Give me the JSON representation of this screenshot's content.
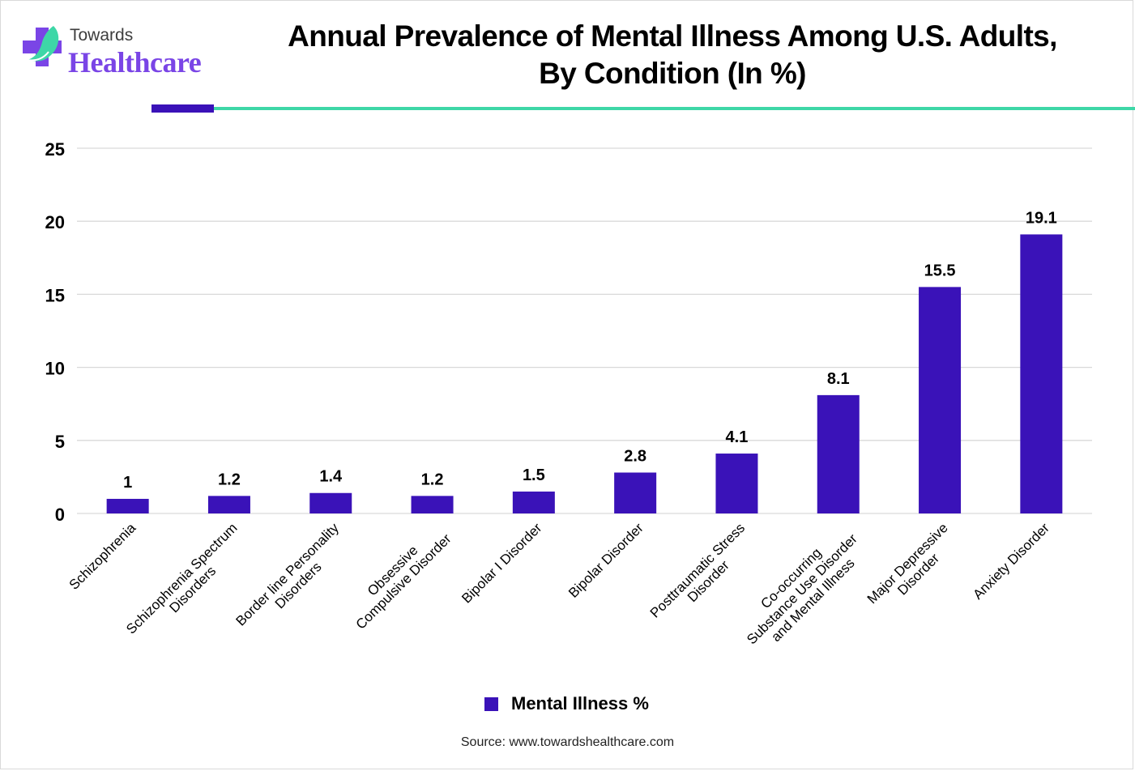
{
  "brand": {
    "top": "Towards",
    "bottom": "Healthcare",
    "colors": {
      "purple": "#7a45e6",
      "teal": "#3ed7a7",
      "dark_text": "#3d3d3d"
    }
  },
  "accent_colors": {
    "dark_bar": "#3a12b8",
    "line": "#3ed7a7"
  },
  "chart_data": {
    "type": "bar",
    "title": "Annual Prevalence of Mental Illness Among U.S. Adults, By Condition (In %)",
    "title_lines": [
      "Annual Prevalence of Mental Illness Among U.S. Adults,",
      "By Condition (In %)"
    ],
    "xlabel": "",
    "ylabel": "",
    "ylim": [
      0,
      25
    ],
    "yticks": [
      0,
      5,
      10,
      15,
      20,
      25
    ],
    "grid": true,
    "categories": [
      "Schizophrenia",
      "Schizophrenia Spectrum Disorders",
      "Border line Personality Disorders",
      "Obsessive Compulsive Disorder",
      "Bipolar I Disorder",
      "Bipolar Disorder",
      "Posttraumatic Stress Disorder",
      "Co-occurring Substance Use Disorder and Mental Illness",
      "Major Depressive Disorder",
      "Anxiety Disorder"
    ],
    "category_lines": [
      [
        "Schizophrenia"
      ],
      [
        "Schizophrenia Spectrum",
        "Disorders"
      ],
      [
        "Border line Personality",
        "Disorders"
      ],
      [
        "Obsessive",
        "Compulsive Disorder"
      ],
      [
        "Bipolar I Disorder"
      ],
      [
        "Bipolar Disorder"
      ],
      [
        "Posttraumatic Stress",
        "Disorder"
      ],
      [
        "Co-occurring",
        "Substance Use Disorder",
        "and Mental Illness"
      ],
      [
        "Major Depressive",
        "Disorder"
      ],
      [
        "Anxiety Disorder"
      ]
    ],
    "series": [
      {
        "name": "Mental Illness %",
        "color": "#3a12b8",
        "values": [
          1,
          1.2,
          1.4,
          1.2,
          1.5,
          2.8,
          4.1,
          8.1,
          15.5,
          19.1
        ],
        "data_labels": [
          "1",
          "1.2",
          "1.4",
          "1.2",
          "1.5",
          "2.8",
          "4.1",
          "8.1",
          "15.5",
          "19.1"
        ]
      }
    ],
    "legend": {
      "position": "bottom",
      "entries": [
        "Mental Illness %"
      ]
    }
  },
  "source": "Source: www.towardshealthcare.com"
}
